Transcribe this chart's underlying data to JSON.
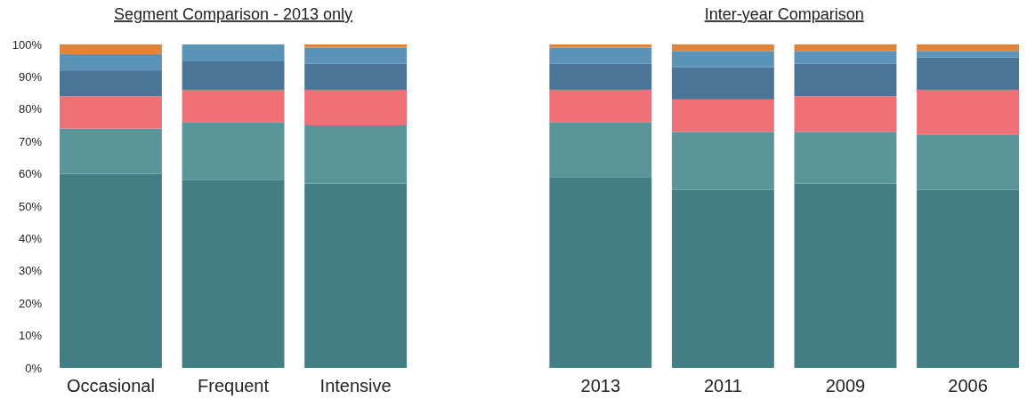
{
  "chart_data": {
    "type": "bar",
    "stacked": true,
    "title": "Segment Comparison - 2013 only",
    "annotations": [
      "Inter-year Comparison"
    ],
    "categories": [
      "Occasional",
      "Frequent",
      "Intensive",
      null,
      "2013",
      "2011",
      "2009",
      "2006"
    ],
    "series": [
      {
        "color": "#437e84",
        "values": [
          60,
          58,
          57,
          null,
          59,
          55,
          57,
          55
        ]
      },
      {
        "color": "#5a9699",
        "values": [
          14,
          18,
          18,
          null,
          17,
          18,
          16,
          17
        ]
      },
      {
        "color": "#f07078",
        "values": [
          10,
          10,
          11,
          null,
          10,
          10,
          11,
          14
        ]
      },
      {
        "color": "#4a7598",
        "values": [
          8,
          9,
          8,
          null,
          8,
          10,
          10,
          10
        ]
      },
      {
        "color": "#5b93b8",
        "values": [
          5,
          5,
          5,
          null,
          5,
          5,
          4,
          2
        ]
      },
      {
        "color": "#e0843c",
        "values": [
          3,
          0,
          1,
          null,
          1,
          2,
          2,
          2
        ]
      }
    ],
    "ylim": [
      0,
      100
    ],
    "yticks": [
      {
        "value": 0,
        "label": "0%"
      },
      {
        "value": 10,
        "label": "10%"
      },
      {
        "value": 20,
        "label": "20%"
      },
      {
        "value": 30,
        "label": "30%"
      },
      {
        "value": 40,
        "label": "40%"
      },
      {
        "value": 50,
        "label": "50%"
      },
      {
        "value": 60,
        "label": "60%"
      },
      {
        "value": 70,
        "label": "70%"
      },
      {
        "value": 80,
        "label": "80%"
      },
      {
        "value": 90,
        "label": "90%"
      },
      {
        "value": 100,
        "label": "100%"
      }
    ],
    "grid": false
  }
}
